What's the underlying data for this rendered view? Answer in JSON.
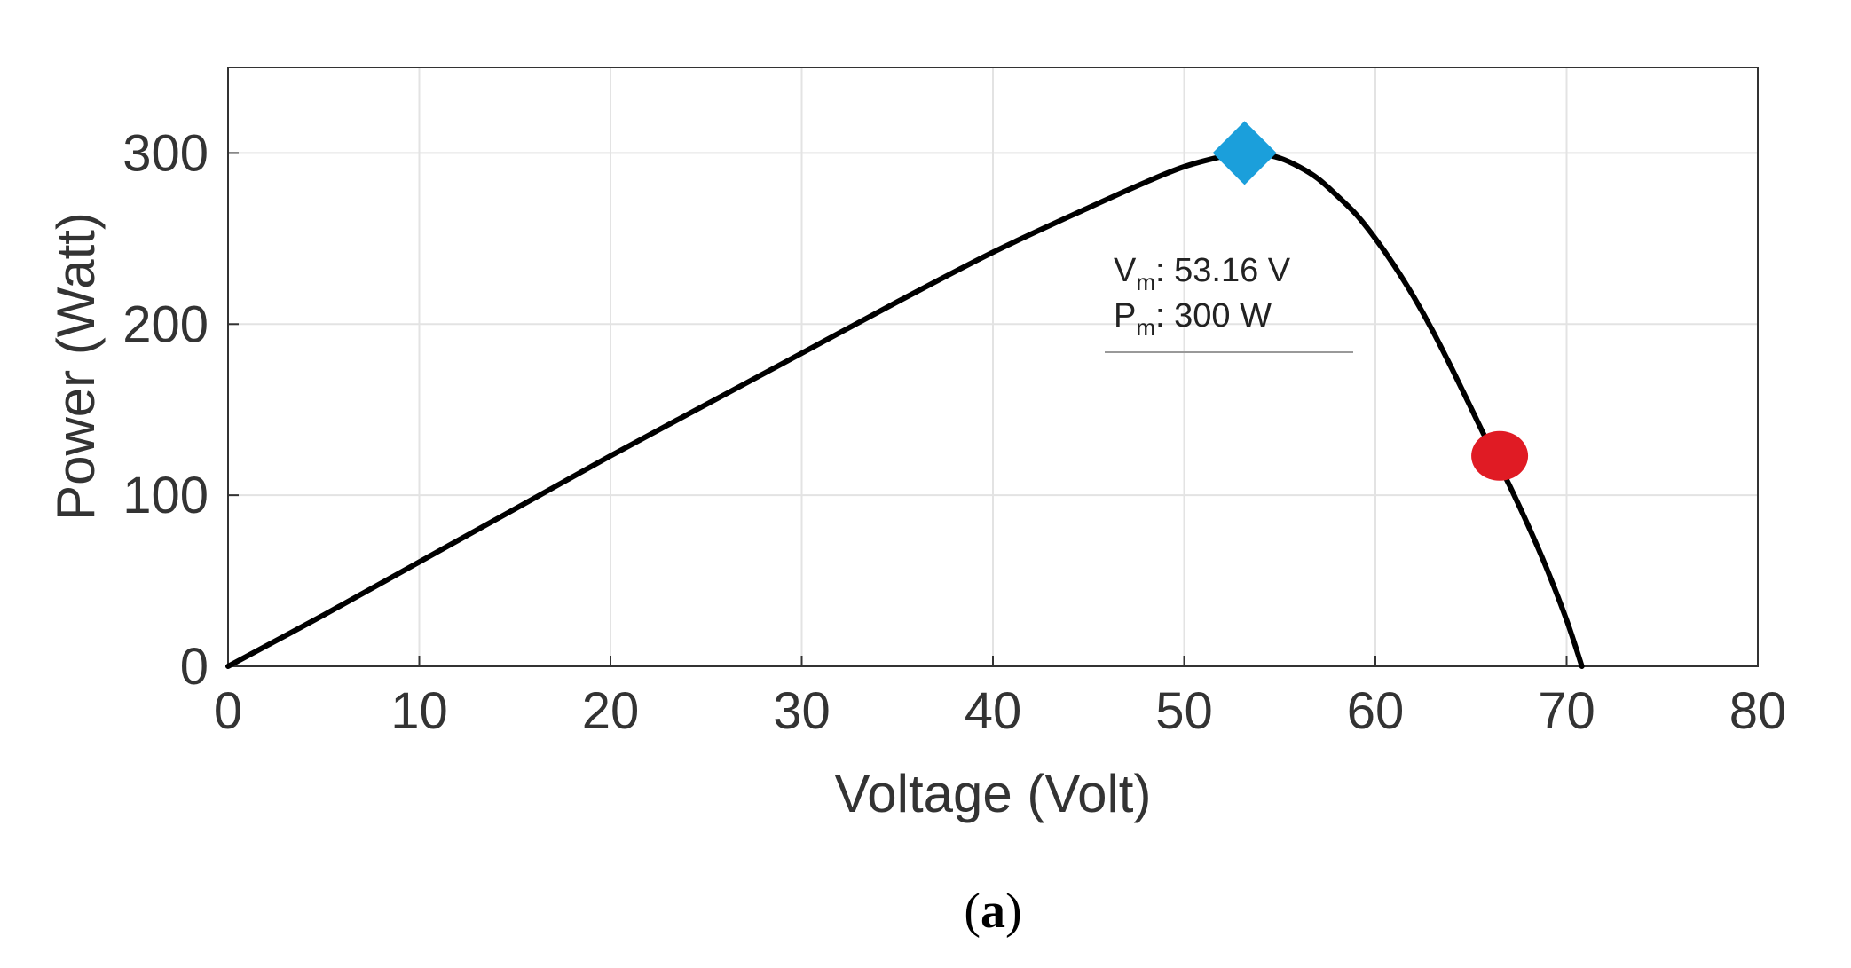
{
  "chart_data": {
    "type": "line",
    "title": "",
    "xlabel": "Voltage (Volt)",
    "ylabel": "Power (Watt)",
    "xlim": [
      0,
      80
    ],
    "ylim": [
      0,
      350
    ],
    "xticks": [
      0,
      10,
      20,
      30,
      40,
      50,
      60,
      70,
      80
    ],
    "yticks": [
      0,
      100,
      200,
      300
    ],
    "grid": true,
    "legend": "none",
    "series": [
      {
        "color": "#000000",
        "x": [
          0,
          5,
          10,
          15,
          20,
          25,
          30,
          35,
          40,
          45,
          48,
          50,
          52,
          53.16,
          54,
          55,
          56,
          57,
          58,
          59,
          60,
          61,
          62,
          63,
          64,
          65,
          66,
          67,
          68,
          69,
          70,
          70.8
        ],
        "y": [
          0,
          30,
          61,
          92,
          123,
          153,
          183,
          213,
          242,
          268,
          283,
          292,
          298,
          300,
          299.5,
          297,
          292,
          285,
          275,
          264,
          250,
          234,
          216,
          196,
          174,
          151,
          128,
          106,
          82,
          56,
          27,
          0
        ]
      }
    ],
    "markers": [
      {
        "name": "max-power-point",
        "shape": "diamond",
        "color": "#1b9fdb",
        "x": 53.16,
        "y": 300
      },
      {
        "name": "operating-point",
        "shape": "circle",
        "color": "#e01b24",
        "x": 66.5,
        "y": 123
      }
    ],
    "annotation": {
      "vm_prefix": "V",
      "vm_sub": "m",
      "vm_value": ": 53.16 V",
      "pm_prefix": "P",
      "pm_sub": "m",
      "pm_value": ": 300 W"
    }
  },
  "caption": {
    "open": "(",
    "letter": "a",
    "close": ")"
  }
}
